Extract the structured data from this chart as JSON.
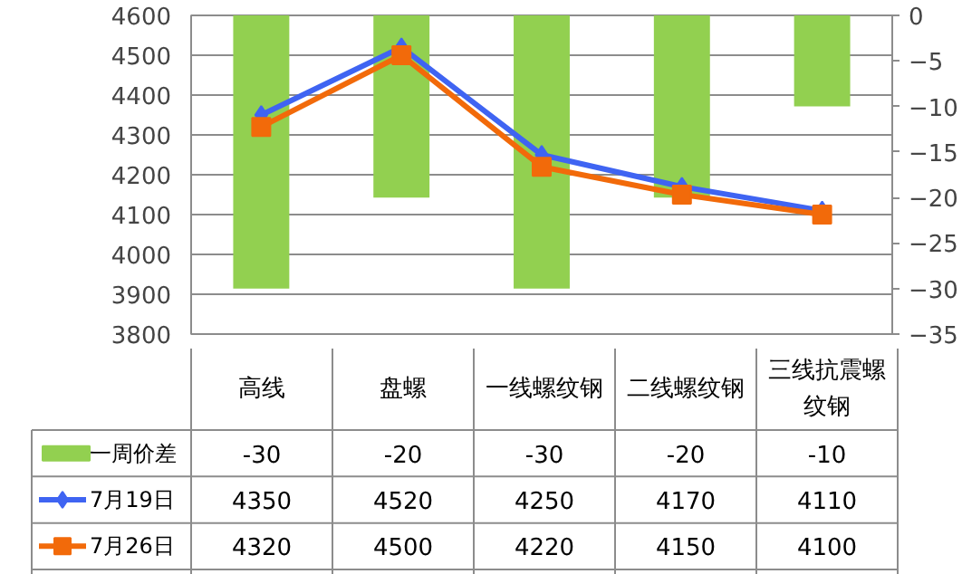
{
  "chart_data": {
    "type": "line",
    "categories": [
      "高线",
      "盘螺",
      "一线螺纹钢",
      "二线螺纹钢",
      "三线抗震螺纹钢"
    ],
    "series": [
      {
        "name": "一周价差",
        "type": "bar",
        "axis": "y2",
        "color": "#92d050",
        "values": [
          -30,
          -20,
          -30,
          -20,
          -10
        ]
      },
      {
        "name": "7月19日",
        "color": "#3f64f2",
        "marker": "diamond",
        "values": [
          4350,
          4520,
          4250,
          4170,
          4110
        ]
      },
      {
        "name": "7月26日",
        "color": "#f26a0a",
        "marker": "square",
        "values": [
          4320,
          4500,
          4220,
          4150,
          4100
        ]
      }
    ],
    "ylim": [
      3800,
      4600
    ],
    "yticks": [
      3800,
      3900,
      4000,
      4100,
      4200,
      4300,
      4400,
      4500,
      4600
    ],
    "y2lim": [
      -35,
      0
    ],
    "y2ticks": [
      -35,
      -30,
      -25,
      -20,
      -15,
      -10,
      -5,
      0
    ],
    "grid": "y",
    "legend": "bottom",
    "data_labels": true
  }
}
